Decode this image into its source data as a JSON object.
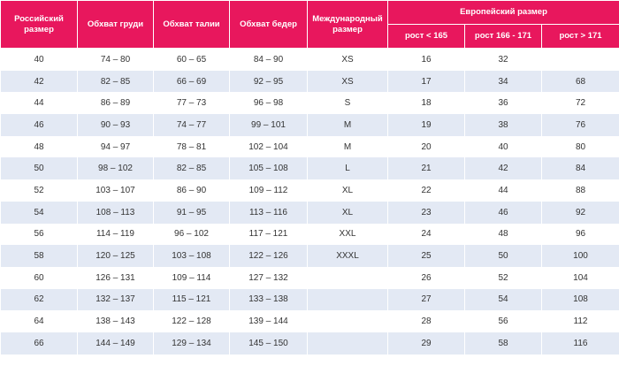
{
  "header": {
    "columns": [
      "Российский размер",
      "Обхват груди",
      "Обхват талии",
      "Обхват бедер",
      "Международный размер"
    ],
    "group": "Европейский размер",
    "subcolumns": [
      "рост < 165",
      "рост 166 - 171",
      "рост > 171"
    ]
  },
  "rows": [
    [
      "40",
      "74 – 80",
      "60 – 65",
      "84 – 90",
      "XS",
      "16",
      "32",
      null
    ],
    [
      "42",
      "82 – 85",
      "66 – 69",
      "92 – 95",
      "XS",
      "17",
      "34",
      "68"
    ],
    [
      "44",
      "86 – 89",
      "77 – 73",
      "96 – 98",
      "S",
      "18",
      "36",
      "72"
    ],
    [
      "46",
      "90 – 93",
      "74 – 77",
      "99 – 101",
      "M",
      "19",
      "38",
      "76"
    ],
    [
      "48",
      "94 – 97",
      "78 – 81",
      "102 – 104",
      "M",
      "20",
      "40",
      "80"
    ],
    [
      "50",
      "98 – 102",
      "82 – 85",
      "105 – 108",
      "L",
      "21",
      "42",
      "84"
    ],
    [
      "52",
      "103 – 107",
      "86 – 90",
      "109 – 112",
      "XL",
      "22",
      "44",
      "88"
    ],
    [
      "54",
      "108 – 113",
      "91 – 95",
      "113 – 116",
      "XL",
      "23",
      "46",
      "92"
    ],
    [
      "56",
      "114 – 119",
      "96 – 102",
      "117 – 121",
      "XXL",
      "24",
      "48",
      "96"
    ],
    [
      "58",
      "120 – 125",
      "103 – 108",
      "122 – 126",
      "XXXL",
      "25",
      "50",
      "100"
    ],
    [
      "60",
      "126 – 131",
      "109 – 114",
      "127 – 132",
      null,
      "26",
      "52",
      "104"
    ],
    [
      "62",
      "132 – 137",
      "115 – 121",
      "133 – 138",
      null,
      "27",
      "54",
      "108"
    ],
    [
      "64",
      "138 – 143",
      "122 – 128",
      "139 – 144",
      null,
      "28",
      "56",
      "112"
    ],
    [
      "66",
      "144 – 149",
      "129 – 134",
      "145 – 150",
      null,
      "29",
      "58",
      "116"
    ]
  ]
}
